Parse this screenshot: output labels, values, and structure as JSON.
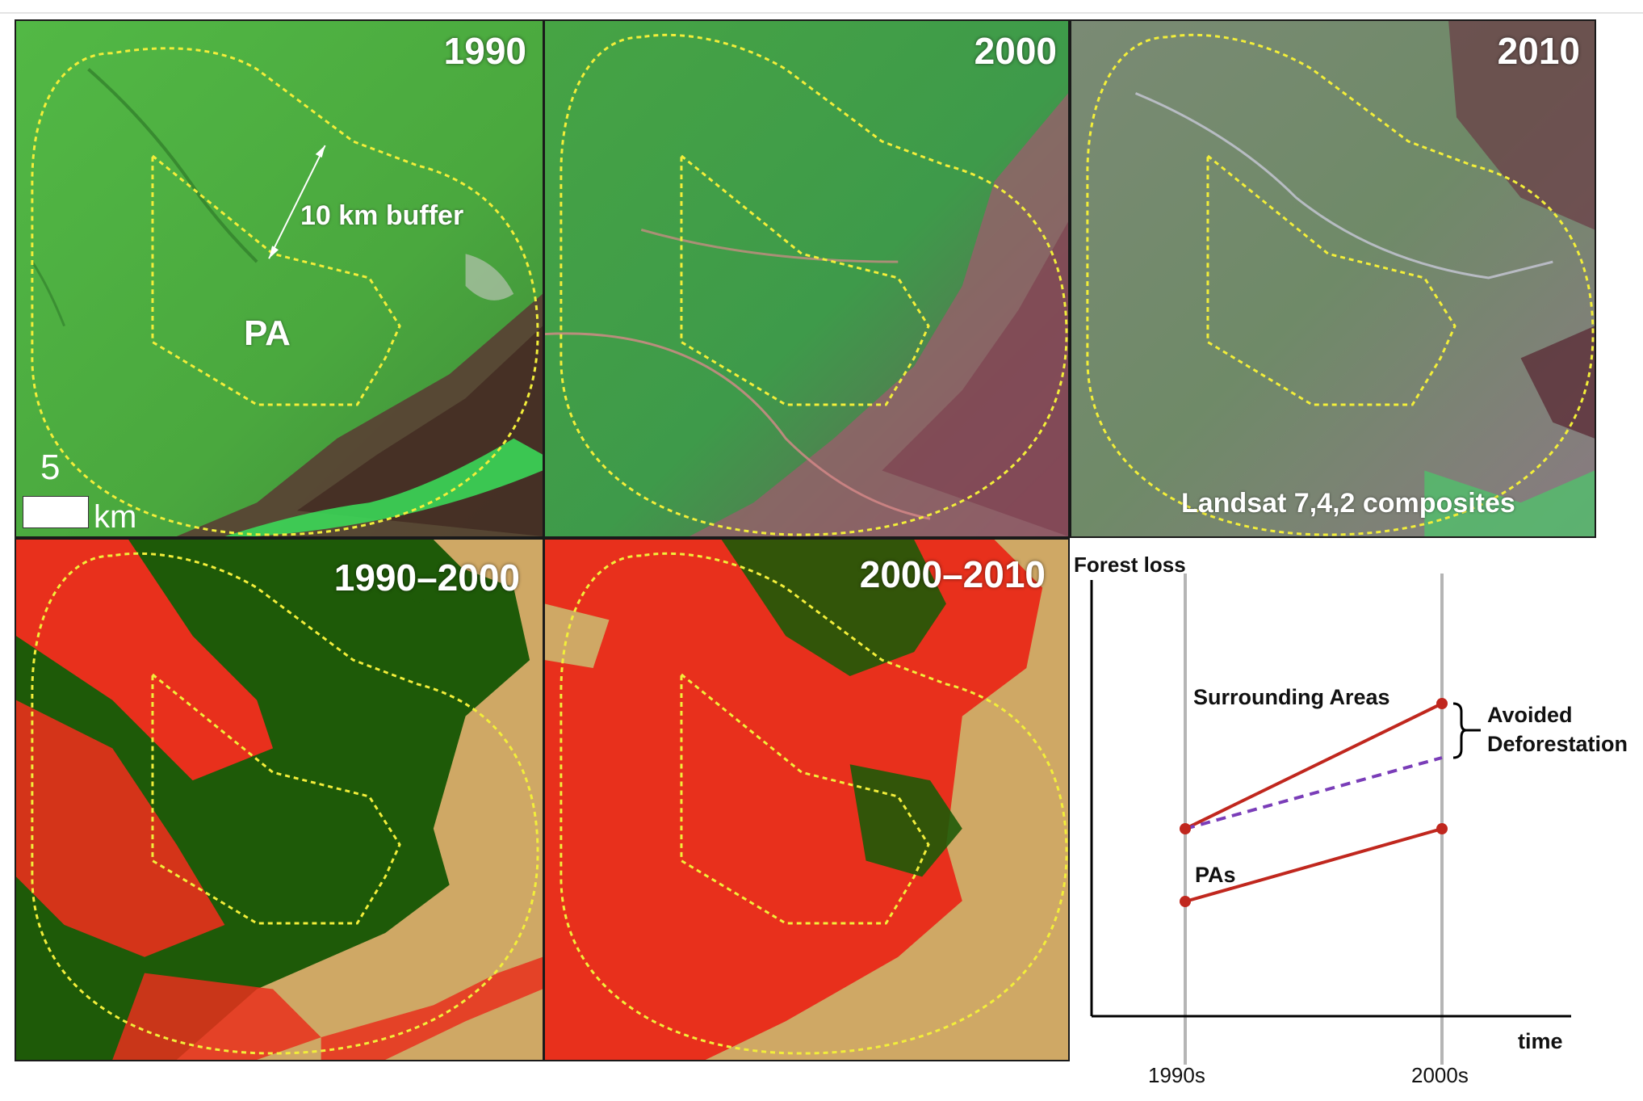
{
  "panels": {
    "p1990": {
      "title": "1990",
      "buffer_label": "10 km buffer",
      "pa_label": "PA",
      "scale": {
        "value": "5",
        "unit": "km"
      }
    },
    "p2000": {
      "title": "2000"
    },
    "p2010": {
      "title": "2010",
      "caption": "Landsat 7,4,2 composites"
    },
    "p1990_2000": {
      "title": "1990–2000"
    },
    "p2000_2010": {
      "title": "2000–2010"
    }
  },
  "diagram": {
    "y_axis_label": "Forest loss",
    "x_axis_label": "time",
    "ticks": [
      "1990s",
      "2000s"
    ],
    "surrounding_label": "Surrounding Areas",
    "pas_label": "PAs",
    "avoided_label_line1": "Avoided",
    "avoided_label_line2": "Deforestation"
  },
  "colors": {
    "forest_loss_red": "#e8301c",
    "forest_dark_green": "#1e5a08",
    "non_forest_tan": "#cfa865",
    "landsat_green": "#4fb23f",
    "pa_outline_yellow": "#f2ee3a",
    "trend_red": "#c0271e",
    "counterfactual_purple": "#7a3db8",
    "guide_gray": "#b5b5b5"
  }
}
